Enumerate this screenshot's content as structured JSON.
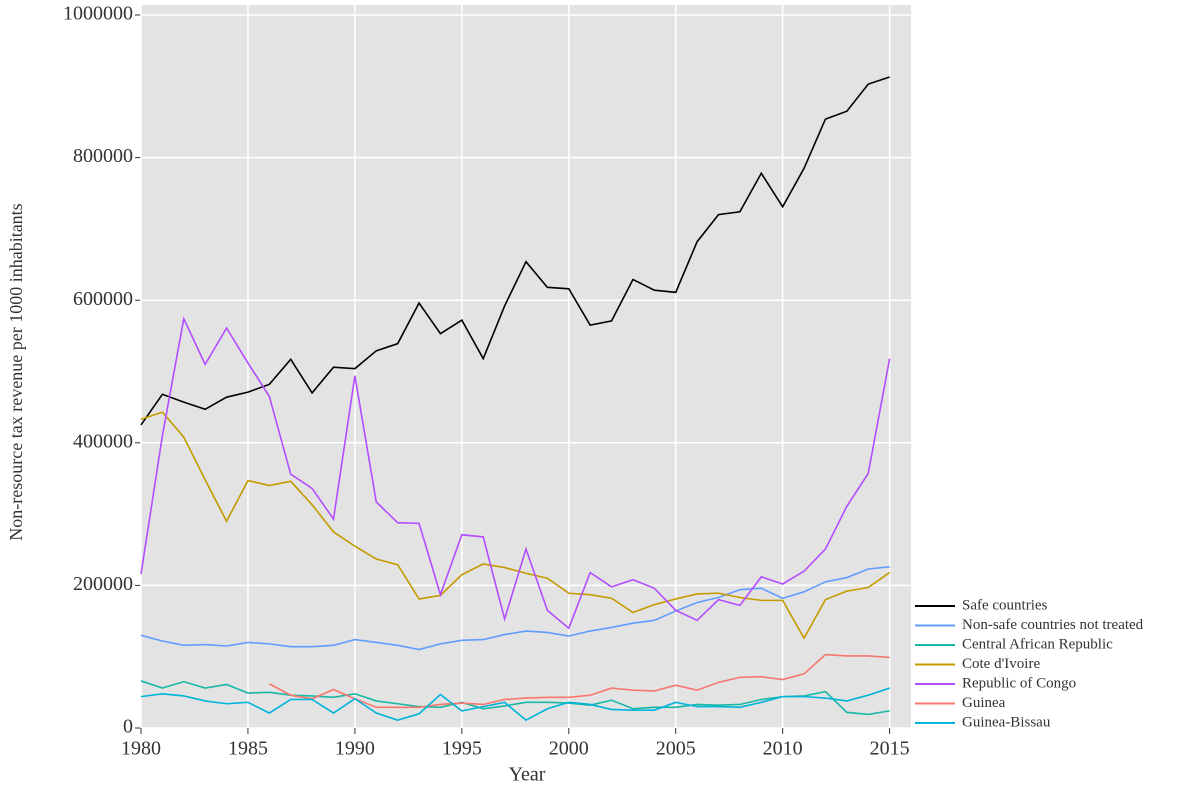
{
  "chart_data": {
    "type": "line",
    "x_label": "Year",
    "y_label": "Non-resource tax revenue per 1000 inhabitants",
    "x": [
      1980,
      1981,
      1982,
      1983,
      1984,
      1985,
      1986,
      1987,
      1988,
      1989,
      1990,
      1991,
      1992,
      1993,
      1994,
      1995,
      1996,
      1997,
      1998,
      1999,
      2000,
      2001,
      2002,
      2003,
      2004,
      2005,
      2006,
      2007,
      2008,
      2009,
      2010,
      2011,
      2012,
      2013,
      2014,
      2015
    ],
    "xlim": [
      1980,
      2016
    ],
    "xticks": [
      1980,
      1985,
      1990,
      1995,
      2000,
      2005,
      2010,
      2015
    ],
    "ylim": [
      0,
      1014000
    ],
    "yticks": [
      0,
      200000,
      400000,
      600000,
      800000,
      1000000
    ],
    "grid": true,
    "legend_position": "right",
    "series": [
      {
        "name": "Safe countries",
        "color": "#000000",
        "values": [
          425000,
          468000,
          457000,
          447000,
          464000,
          471000,
          482000,
          517000,
          470000,
          506000,
          504000,
          529000,
          539000,
          596000,
          553000,
          572000,
          518000,
          592000,
          654000,
          618000,
          616000,
          565000,
          571000,
          629000,
          614000,
          611000,
          682000,
          720000,
          724000,
          778000,
          731000,
          785000,
          854000,
          865000,
          903000,
          913000
        ]
      },
      {
        "name": "Non-safe countries not treated",
        "color": "#619CFF",
        "values": [
          130000,
          122000,
          116000,
          117000,
          115000,
          120000,
          118000,
          114000,
          114000,
          116000,
          124000,
          120000,
          116000,
          110000,
          118000,
          123000,
          124000,
          131000,
          136000,
          134000,
          129000,
          136000,
          141000,
          147000,
          151000,
          164000,
          176000,
          183000,
          194000,
          196000,
          182000,
          191000,
          205000,
          211000,
          223000,
          226000
        ]
      },
      {
        "name": "Central African Republic",
        "color": "#17B8A6",
        "values": [
          66000,
          56000,
          65000,
          56000,
          61000,
          49000,
          50000,
          46000,
          45000,
          43000,
          48000,
          38000,
          34000,
          30000,
          29000,
          36000,
          27000,
          31000,
          36000,
          36000,
          35000,
          32000,
          39000,
          27000,
          29000,
          29000,
          33000,
          32000,
          33000,
          40000,
          44000,
          45000,
          51000,
          22000,
          19000,
          24000
        ]
      },
      {
        "name": "Cote d'Ivoire",
        "color": "#C49A00",
        "values": [
          433000,
          443000,
          408000,
          348000,
          290000,
          347000,
          340000,
          346000,
          313000,
          275000,
          255000,
          237000,
          229000,
          181000,
          186000,
          215000,
          230000,
          225000,
          217000,
          210000,
          189000,
          187000,
          182000,
          162000,
          173000,
          181000,
          188000,
          189000,
          183000,
          179000,
          179000,
          126000,
          180000,
          192000,
          197000,
          218000
        ]
      },
      {
        "name": "Republic of Congo",
        "color": "#B44CFF",
        "values": [
          216000,
          410000,
          574000,
          510000,
          561000,
          512000,
          465000,
          356000,
          336000,
          293000,
          494000,
          317000,
          288000,
          287000,
          187000,
          271000,
          268000,
          153000,
          251000,
          165000,
          140000,
          218000,
          198000,
          208000,
          196000,
          165000,
          151000,
          180000,
          172000,
          212000,
          202000,
          220000,
          251000,
          311000,
          357000,
          518000
        ]
      },
      {
        "name": "Guinea",
        "color": "#F8766D",
        "values": [
          null,
          null,
          null,
          null,
          null,
          null,
          62000,
          46000,
          41000,
          54000,
          41000,
          29000,
          29000,
          29000,
          33000,
          35000,
          33000,
          40000,
          42000,
          43000,
          43000,
          46000,
          56000,
          53000,
          52000,
          60000,
          53000,
          64000,
          71000,
          72000,
          68000,
          76000,
          103000,
          101000,
          101000,
          99000
        ]
      },
      {
        "name": "Guinea-Bissau",
        "color": "#00B4DA",
        "values": [
          44000,
          48000,
          45000,
          38000,
          34000,
          36000,
          21000,
          40000,
          40000,
          21000,
          41000,
          21000,
          11000,
          20000,
          47000,
          24000,
          30000,
          36000,
          11000,
          27000,
          36000,
          33000,
          26000,
          25000,
          25000,
          36000,
          30000,
          30000,
          29000,
          36000,
          44000,
          44000,
          42000,
          38000,
          46000,
          56000
        ]
      }
    ]
  }
}
